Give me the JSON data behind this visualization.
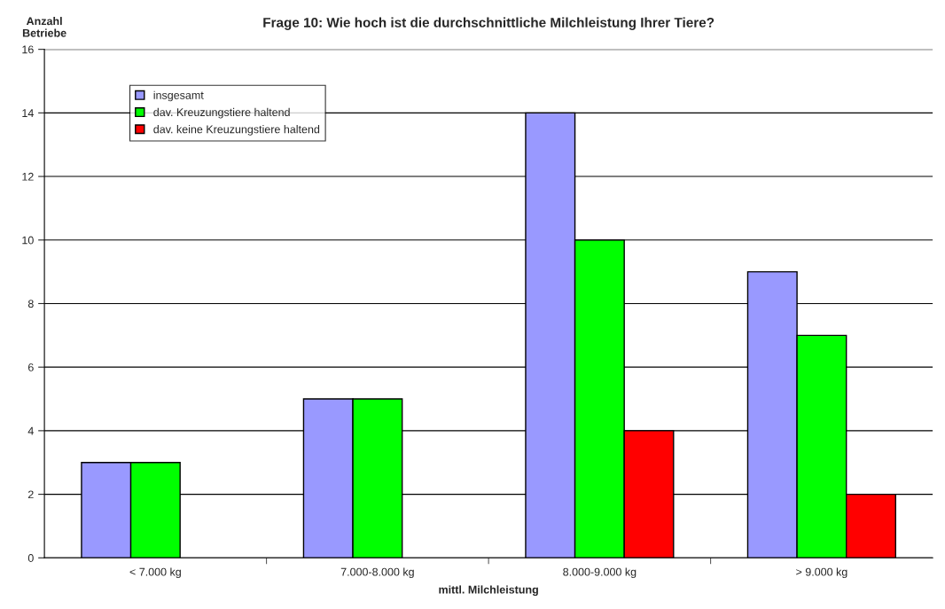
{
  "chart_data": {
    "type": "bar",
    "title": "Frage 10: Wie hoch ist die durchschnittliche Milchleistung Ihrer Tiere?",
    "xlabel": "mittl. Milchleistung",
    "ylabel": "Anzahl\nBetriebe",
    "categories": [
      "< 7.000 kg",
      "7.000-8.000 kg",
      "8.000-9.000 kg",
      "> 9.000 kg"
    ],
    "series": [
      {
        "name": "insgesamt",
        "color": "#9999ff",
        "values": [
          3,
          5,
          14,
          9
        ]
      },
      {
        "name": "dav. Kreuzungstiere haltend",
        "color": "#00ff00",
        "values": [
          3,
          5,
          10,
          7
        ]
      },
      {
        "name": "dav. keine Kreuzungstiere haltend",
        "color": "#ff0000",
        "values": [
          null,
          null,
          4,
          2
        ]
      }
    ],
    "ylim": [
      0,
      16
    ],
    "yticks": [
      0,
      2,
      4,
      6,
      8,
      10,
      12,
      14,
      16
    ],
    "grid": "y",
    "legend": "top left"
  }
}
